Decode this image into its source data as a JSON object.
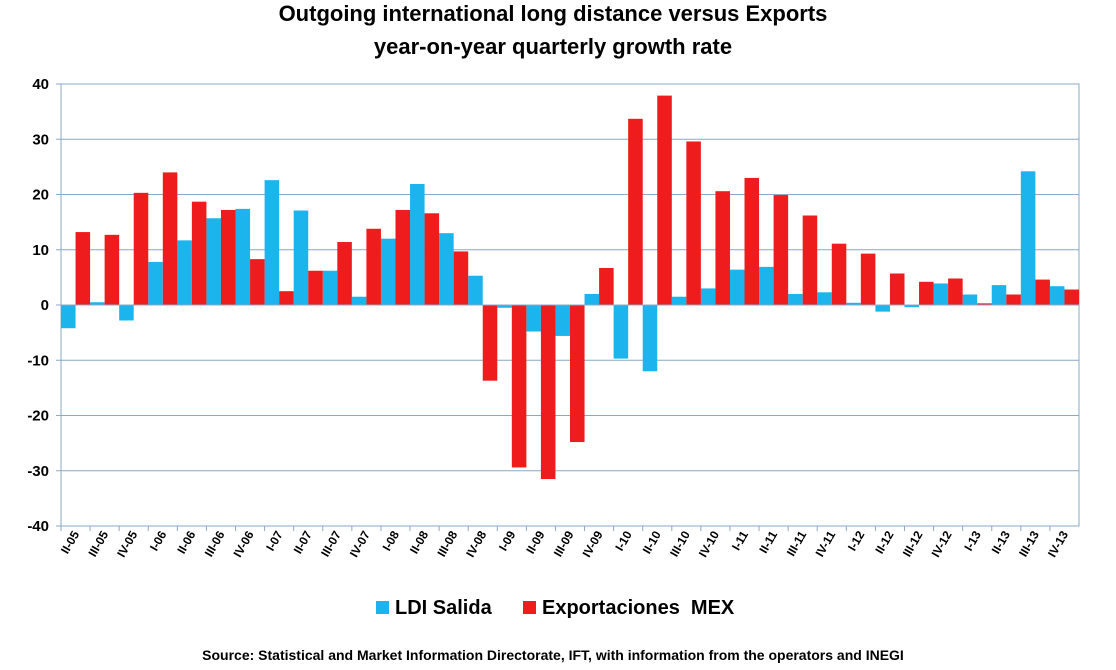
{
  "chart_data": {
    "type": "bar",
    "title_line1": "Outgoing international long distance versus Exports",
    "title_line2": "year-on-year quarterly growth rate",
    "categories": [
      "II-05",
      "III-05",
      "IV-05",
      "I-06",
      "II-06",
      "III-06",
      "IV-06",
      "I-07",
      "II-07",
      "III-07",
      "IV-07",
      "I-08",
      "II-08",
      "III-08",
      "IV-08",
      "I-09",
      "II-09",
      "III-09",
      "IV-09",
      "I-10",
      "II-10",
      "III-10",
      "IV-10",
      "I-11",
      "II-11",
      "III-11",
      "IV-11",
      "I-12",
      "II-12",
      "III-12",
      "IV-12",
      "I-13",
      "II-13",
      "III-13",
      "IV-13"
    ],
    "series": [
      {
        "name": "LDI Salida",
        "color": "#1cb4ec",
        "values": [
          -4.2,
          0.5,
          -2.8,
          7.8,
          11.7,
          15.7,
          17.4,
          22.6,
          17.1,
          6.2,
          1.5,
          12.0,
          21.9,
          13.0,
          5.3,
          -0.5,
          -4.8,
          -5.6,
          2.0,
          -9.7,
          -12.0,
          1.5,
          3.0,
          6.4,
          6.9,
          2.0,
          2.3,
          0.4,
          -1.2,
          -0.4,
          3.9,
          1.9,
          3.6,
          24.2,
          3.4
        ]
      },
      {
        "name": "Exportaciones  MEX",
        "color": "#ee1c1c",
        "values": [
          13.2,
          12.7,
          20.3,
          24.0,
          18.7,
          17.2,
          8.3,
          2.5,
          6.2,
          11.4,
          13.8,
          17.2,
          16.6,
          9.7,
          -13.7,
          -29.4,
          -31.5,
          -24.8,
          6.7,
          33.7,
          37.9,
          29.6,
          20.6,
          23.0,
          19.9,
          16.2,
          11.1,
          9.3,
          5.7,
          4.2,
          4.8,
          0.3,
          1.9,
          4.6,
          2.8
        ]
      }
    ],
    "xlabel": "",
    "ylabel": "",
    "ylim": [
      -40,
      40
    ],
    "yticks": [
      40,
      30,
      20,
      10,
      0,
      -10,
      -20,
      -30,
      -40
    ],
    "grid": true,
    "legend_position": "bottom-center",
    "source": "Source: Statistical and Market Information Directorate, IFT, with information from the operators and INEGI"
  }
}
